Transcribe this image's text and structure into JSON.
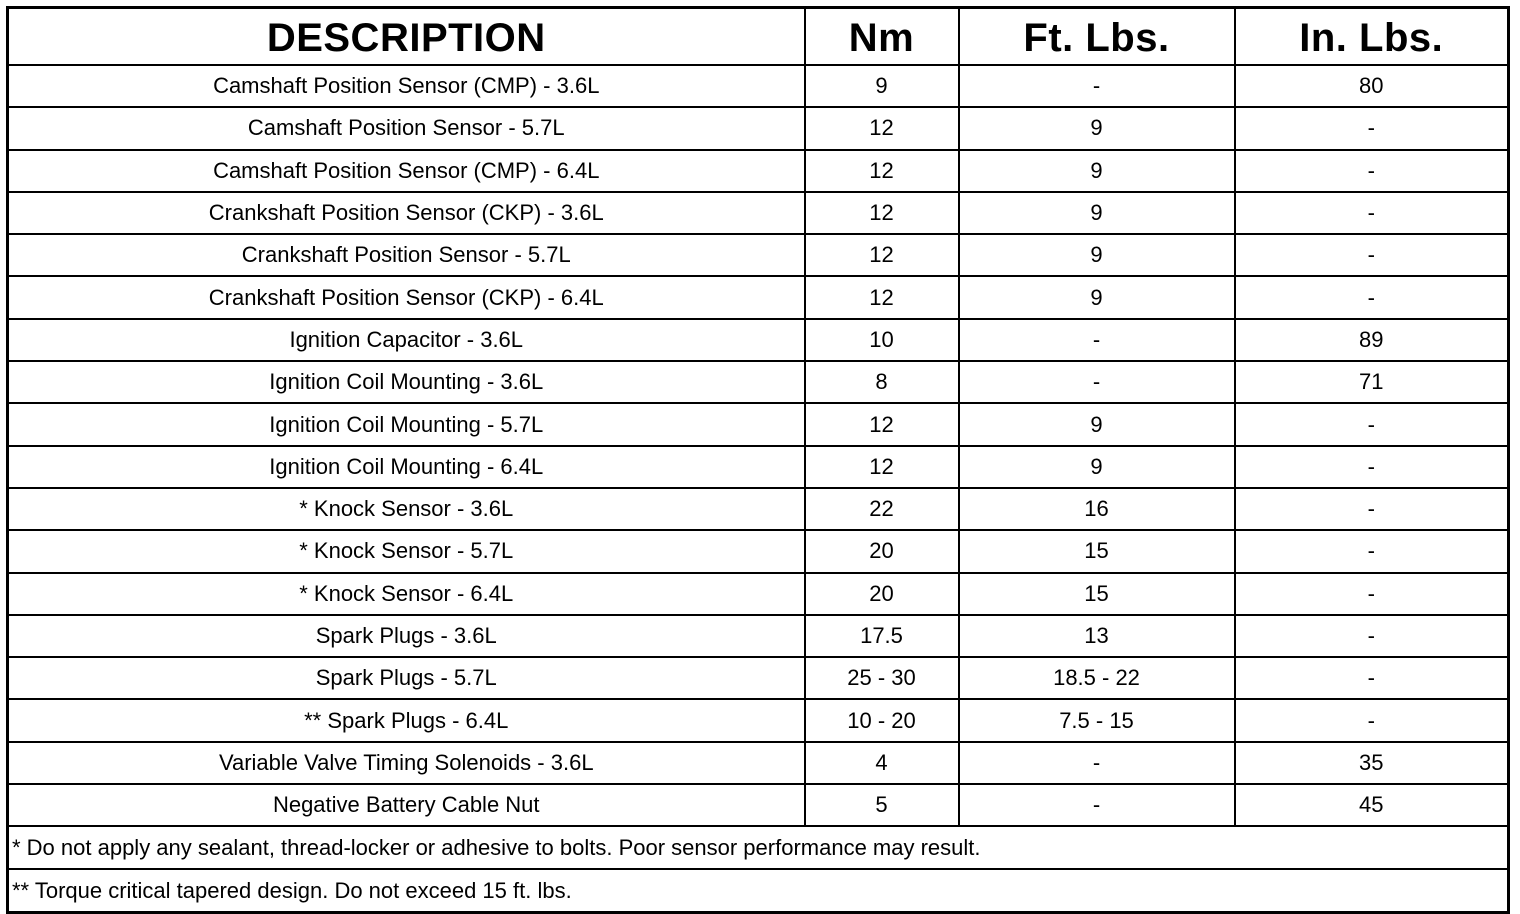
{
  "table": {
    "header": [
      "DESCRIPTION",
      "Nm",
      "Ft. Lbs.",
      "In. Lbs."
    ],
    "rows": [
      [
        "Camshaft Position Sensor (CMP) - 3.6L",
        "9",
        "-",
        "80"
      ],
      [
        "Camshaft Position Sensor - 5.7L",
        "12",
        "9",
        "-"
      ],
      [
        "Camshaft Position Sensor (CMP) - 6.4L",
        "12",
        "9",
        "-"
      ],
      [
        "Crankshaft Position Sensor (CKP) - 3.6L",
        "12",
        "9",
        "-"
      ],
      [
        "Crankshaft Position Sensor - 5.7L",
        "12",
        "9",
        "-"
      ],
      [
        "Crankshaft Position Sensor (CKP) - 6.4L",
        "12",
        "9",
        "-"
      ],
      [
        "Ignition Capacitor - 3.6L",
        "10",
        "-",
        "89"
      ],
      [
        "Ignition Coil Mounting - 3.6L",
        "8",
        "-",
        "71"
      ],
      [
        "Ignition Coil Mounting - 5.7L",
        "12",
        "9",
        "-"
      ],
      [
        "Ignition Coil Mounting - 6.4L",
        "12",
        "9",
        "-"
      ],
      [
        "* Knock Sensor - 3.6L",
        "22",
        "16",
        "-"
      ],
      [
        "* Knock Sensor - 5.7L",
        "20",
        "15",
        "-"
      ],
      [
        "* Knock Sensor - 6.4L",
        "20",
        "15",
        "-"
      ],
      [
        "Spark Plugs - 3.6L",
        "17.5",
        "13",
        "-"
      ],
      [
        "Spark Plugs - 5.7L",
        "25 - 30",
        "18.5 - 22",
        "-"
      ],
      [
        "** Spark Plugs - 6.4L",
        "10 - 20",
        "7.5 - 15",
        "-"
      ],
      [
        "Variable Valve Timing Solenoids - 3.6L",
        "4",
        "-",
        "35"
      ],
      [
        "Negative Battery Cable Nut",
        "5",
        "-",
        "45"
      ]
    ],
    "notes": [
      "* Do not apply any sealant, thread-locker or adhesive to bolts. Poor sensor performance may result.",
      "** Torque critical tapered design. Do not exceed 15 ft. lbs."
    ]
  }
}
